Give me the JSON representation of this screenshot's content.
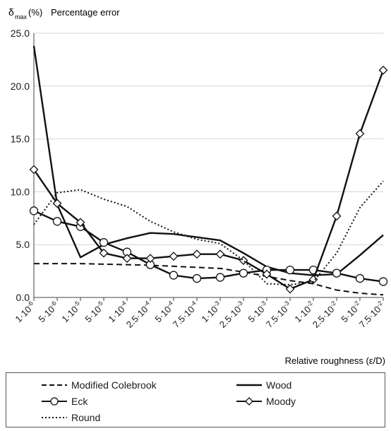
{
  "chart_data": {
    "type": "line",
    "ylabel_symbol": "δ",
    "ylabel_sub": "max",
    "ylabel_unit": "(%)",
    "ylabel_text": "Percentage error",
    "xlabel": "Relative roughness (ε/D)",
    "categories": [
      "1·10⁻⁶",
      "5·10⁻⁶",
      "1·10⁻⁵",
      "5·10⁻⁵",
      "1·10⁻⁴",
      "2.5·10⁻⁴",
      "5·10⁻⁴",
      "7.5·10⁻⁴",
      "1·10⁻³",
      "2.5·10⁻³",
      "5·10⁻³",
      "7.5·10⁻³",
      "1·10⁻²",
      "2.5·10⁻²",
      "5·10⁻²",
      "7.5·10⁻²"
    ],
    "category_labels": [
      "1·10",
      "5·10",
      "1·10",
      "5·10",
      "1·10",
      "2.5·10",
      "5·10",
      "7.5·10",
      "1·10",
      "2.5·10",
      "5·10",
      "7.5·10",
      "1·10",
      "2.5·10",
      "5·10",
      "7.5·10"
    ],
    "category_exponents": [
      "-6",
      "-6",
      "-5",
      "-5",
      "-4",
      "-4",
      "-4",
      "-4",
      "-3",
      "-3",
      "-3",
      "-3",
      "-2",
      "-2",
      "-2",
      "-2"
    ],
    "ylim": [
      0,
      25
    ],
    "yticks": [
      "0.0",
      "5.0",
      "10.0",
      "15.0",
      "20.0",
      "25.0"
    ],
    "grid": true,
    "series": [
      {
        "name": "Modified Colebrook",
        "style": "dashed",
        "marker": "none",
        "values": [
          3.2,
          3.2,
          3.2,
          3.15,
          3.1,
          3.05,
          2.95,
          2.85,
          2.75,
          2.4,
          2.0,
          1.6,
          1.3,
          0.7,
          0.4,
          0.25
        ]
      },
      {
        "name": "Wood",
        "style": "solid",
        "marker": "none",
        "values": [
          23.8,
          8.8,
          3.8,
          5.0,
          5.6,
          6.1,
          6.0,
          5.7,
          5.4,
          4.2,
          2.9,
          2.3,
          2.1,
          2.2,
          4.0,
          5.9
        ]
      },
      {
        "name": "Eck",
        "style": "solid",
        "marker": "circle",
        "values": [
          8.2,
          7.2,
          6.7,
          5.2,
          4.3,
          3.1,
          2.1,
          1.8,
          1.9,
          2.3,
          2.6,
          2.6,
          2.6,
          2.3,
          1.8,
          1.5
        ]
      },
      {
        "name": "Moody",
        "style": "solid",
        "marker": "diamond",
        "values": [
          12.1,
          8.9,
          7.1,
          4.2,
          3.7,
          3.7,
          3.9,
          4.1,
          4.1,
          3.5,
          2.2,
          0.8,
          1.7,
          7.7,
          15.5,
          21.5
        ]
      },
      {
        "name": "Round",
        "style": "dotted",
        "marker": "none",
        "values": [
          6.9,
          9.9,
          10.2,
          9.3,
          8.6,
          7.2,
          6.2,
          5.5,
          5.1,
          3.5,
          1.3,
          1.2,
          1.5,
          4.2,
          8.5,
          11.0
        ]
      }
    ],
    "legend_position": "bottom"
  },
  "colors": {
    "line": "#111111",
    "grid": "#d4d4d4",
    "axis": "#444444"
  }
}
